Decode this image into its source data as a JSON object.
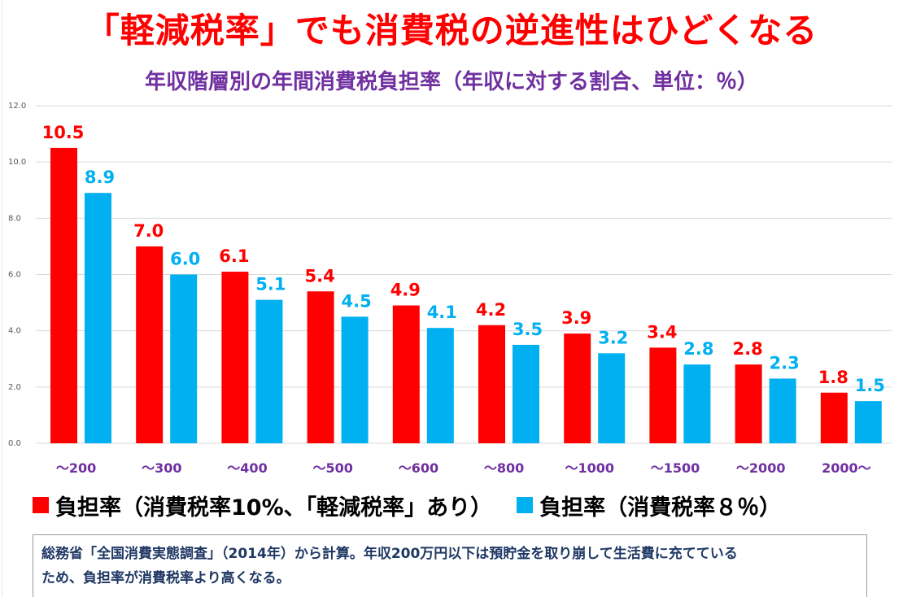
{
  "title": "「軽減税率」でも消費税の逆進性はひどくなる",
  "subtitle": "年収階層別の年間消費税負担率（年収に対する割合、単位：％）",
  "colors": {
    "red": "#ff0000",
    "blue": "#00b0f0",
    "title": "#ff0000",
    "subtitle": "#7030a0",
    "xtick": "#7030a0",
    "note": "#1f3864"
  },
  "chart_data": {
    "type": "bar",
    "categories": [
      "～200",
      "～300",
      "～400",
      "～500",
      "～600",
      "～800",
      "～1000",
      "～1500",
      "～2000",
      "2000～"
    ],
    "series": [
      {
        "name": "負担率（消費税率10%、「軽減税率」あり）",
        "color": "#ff0000",
        "values": [
          10.5,
          7.0,
          6.1,
          5.4,
          4.9,
          4.2,
          3.9,
          3.4,
          2.8,
          1.8
        ]
      },
      {
        "name": "負担率（消費税率８％）",
        "color": "#00b0f0",
        "values": [
          8.9,
          6.0,
          5.1,
          4.5,
          4.1,
          3.5,
          3.2,
          2.8,
          2.3,
          1.5
        ]
      }
    ],
    "ylim": [
      0,
      12
    ],
    "yticks": [
      "0.0",
      "2.0",
      "4.0",
      "6.0",
      "8.0",
      "10.0",
      "12.0"
    ],
    "grid": true,
    "legend_position": "bottom-left"
  },
  "legend": [
    {
      "label": "負担率（消費税率10%、「軽減税率」あり）"
    },
    {
      "label": "負担率（消費税率８％）"
    }
  ],
  "note": {
    "line1": "総務省「全国消費実態調査」（2014年）から計算。年収200万円以下は預貯金を取り崩して生活費に充てている",
    "line2": "ため、負担率が消費税率より高くなる。"
  }
}
